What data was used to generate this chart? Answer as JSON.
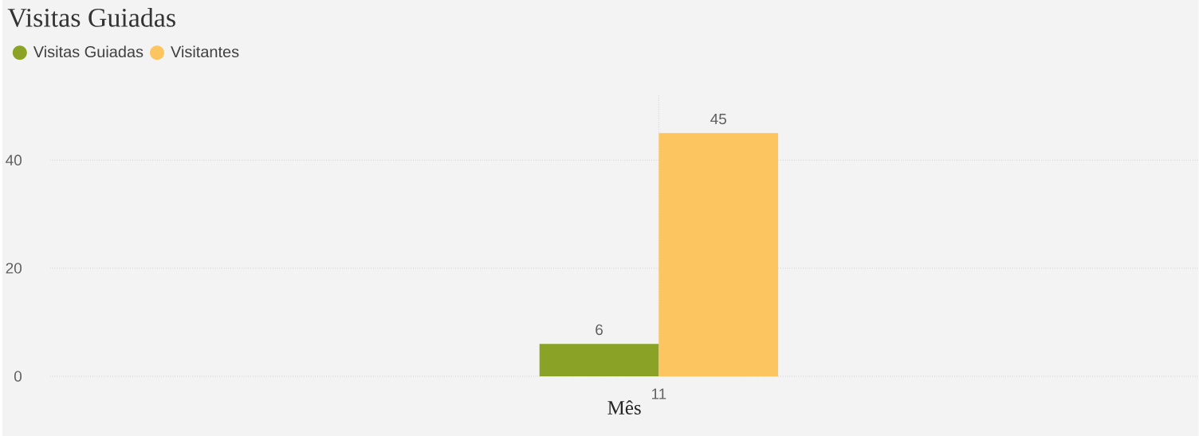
{
  "chart_data": {
    "type": "bar",
    "title": "Visitas Guiadas",
    "xlabel": "Mês",
    "categories": [
      "11"
    ],
    "series": [
      {
        "name": "Visitas Guiadas",
        "color": "#8aa326",
        "values": [
          6
        ]
      },
      {
        "name": "Visitantes",
        "color": "#fdc55f",
        "values": [
          45
        ]
      }
    ],
    "ylim": [
      0,
      52
    ],
    "yticks": [
      0,
      20,
      40
    ],
    "grid": true,
    "legend": "top left",
    "data_labels": true
  }
}
